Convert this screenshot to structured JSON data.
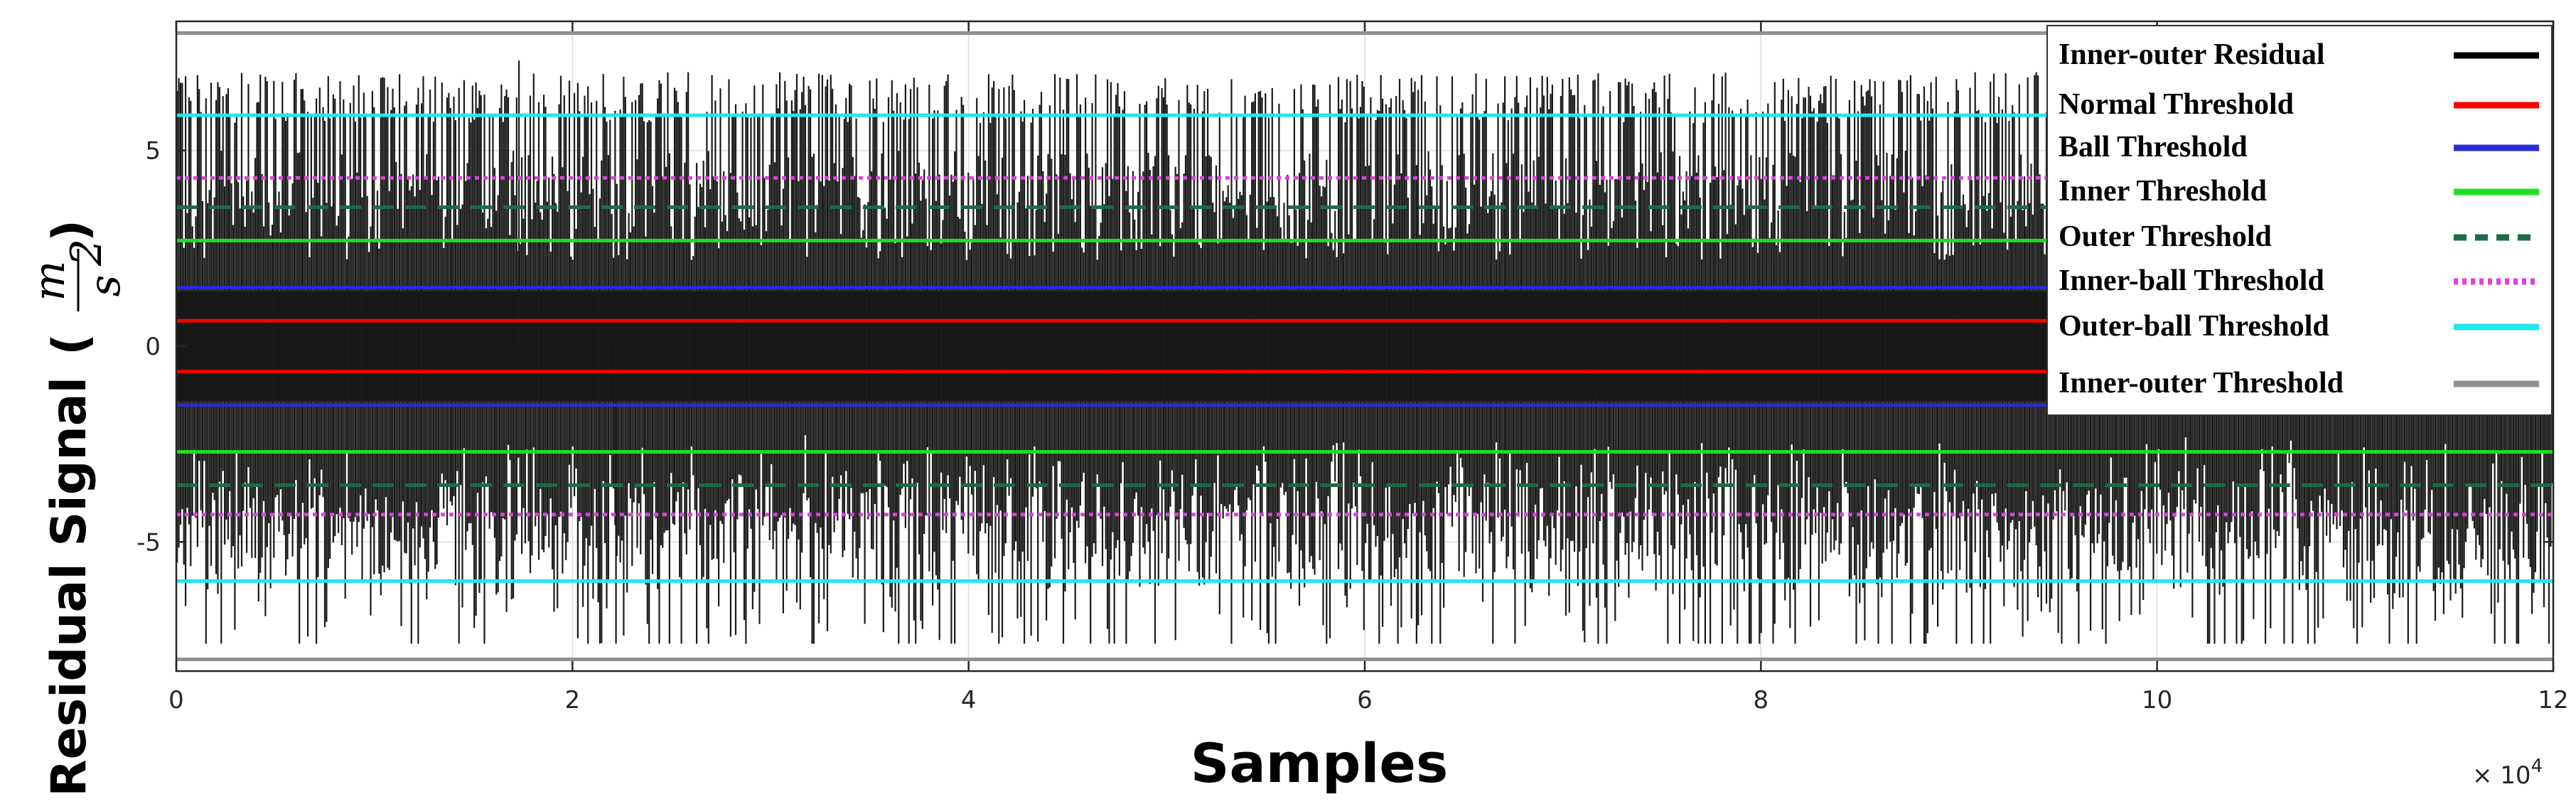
{
  "chart_data": {
    "type": "line",
    "xlabel": "Samples",
    "ylabel": "Residual Signal",
    "yunit": {
      "numerator": "m",
      "denominator": "s",
      "exponent": "2"
    },
    "x_multiplier": "× 10",
    "x_multiplier_exp": "4",
    "xlim": [
      0,
      12
    ],
    "ylim": [
      -8.3,
      8.3
    ],
    "xticks": [
      0,
      2,
      4,
      6,
      8,
      10,
      12
    ],
    "xtick_labels": [
      "0",
      "2",
      "4",
      "6",
      "8",
      "10",
      "12"
    ],
    "yticks": [
      -5,
      0,
      5
    ],
    "ytick_labels": [
      "-5",
      "0",
      "5"
    ],
    "grid": true,
    "legend_position": "top-right",
    "residual": {
      "name": "Inner-outer Residual",
      "color": "#000000",
      "dense_band": [
        -1.4,
        1.4
      ],
      "typical_peak_range": [
        -6.5,
        6.5
      ],
      "max_peak": 7.3,
      "min_peak": -7.6
    },
    "series": [
      {
        "name": "Normal Threshold",
        "color": "#ff0000",
        "style": "solid",
        "values": [
          0.65,
          -0.65
        ]
      },
      {
        "name": "Ball Threshold",
        "color": "#2b2bd6",
        "style": "solid",
        "values": [
          1.5,
          -1.5
        ]
      },
      {
        "name": "Inner Threshold",
        "color": "#22dd22",
        "style": "solid",
        "values": [
          2.7,
          -2.7
        ]
      },
      {
        "name": "Outer Threshold",
        "color": "#1e6b46",
        "style": "dashed",
        "values": [
          3.55,
          -3.55
        ]
      },
      {
        "name": "Inner-ball Threshold",
        "color": "#e040e0",
        "style": "dotted",
        "values": [
          4.3,
          -4.3
        ]
      },
      {
        "name": "Outer-ball Threshold",
        "color": "#22e6f0",
        "style": "solid",
        "values": [
          5.9,
          -6.0
        ]
      },
      {
        "name": "Inner-outer Threshold",
        "color": "#909090",
        "style": "solid",
        "values": [
          8.0,
          -8.0
        ]
      }
    ]
  }
}
